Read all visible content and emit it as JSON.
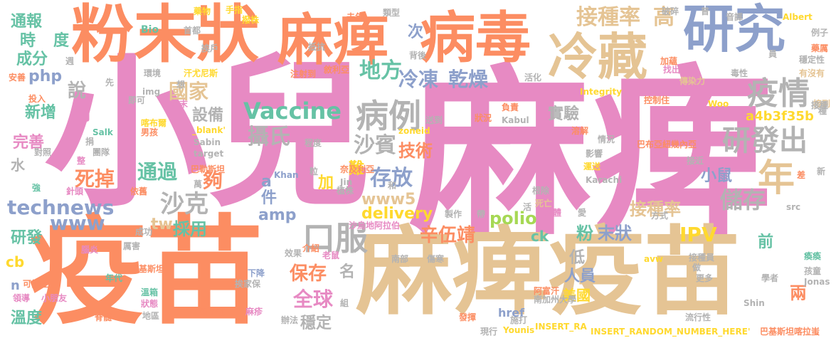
{
  "palette": {
    "pink": "#e78ac3",
    "orange": "#fc8d62",
    "tan": "#e5c494",
    "blue": "#8da0cb",
    "green": "#66c2a5",
    "lime": "#a6d854",
    "yellow": "#ffd92f",
    "gray": "#b3b3b3"
  },
  "words": [
    {
      "id": "xiaoer",
      "text": "小兒",
      "color": "pink"
    },
    {
      "id": "mabi-main",
      "text": "麻痺",
      "color": "pink"
    },
    {
      "id": "yimiao-1",
      "text": "疫苗",
      "color": "orange"
    },
    {
      "id": "mabi-yimiao",
      "text": "麻痺疫苗",
      "color": "tan"
    },
    {
      "id": "fenmozhuang",
      "text": "粉末狀",
      "color": "orange"
    },
    {
      "id": "mabi-2",
      "text": "麻痺",
      "color": "orange"
    },
    {
      "id": "bingdu",
      "text": "病毒",
      "color": "orange"
    },
    {
      "id": "yanjiu",
      "text": "研究",
      "color": "blue"
    },
    {
      "id": "lengcang",
      "text": "冷藏",
      "color": "tan"
    },
    {
      "id": "jiezhonglv",
      "text": "接種率",
      "color": "tan"
    },
    {
      "id": "gao",
      "text": "高",
      "color": "tan"
    },
    {
      "id": "yiqing",
      "text": "疫情",
      "color": "gray"
    },
    {
      "id": "yanfachu",
      "text": "研發出",
      "color": "gray"
    },
    {
      "id": "nian",
      "text": "年",
      "color": "tan"
    },
    {
      "id": "bingli",
      "text": "病例",
      "color": "gray"
    },
    {
      "id": "vaccine",
      "text": "Vaccine",
      "color": "green"
    },
    {
      "id": "difang",
      "text": "地方",
      "color": "green"
    },
    {
      "id": "lengdong",
      "text": "冷凍",
      "color": "blue"
    },
    {
      "id": "ganzao",
      "text": "乾燥",
      "color": "blue"
    },
    {
      "id": "guojia",
      "text": "國家",
      "color": "tan"
    },
    {
      "id": "shebei",
      "text": "設備",
      "color": "gray"
    },
    {
      "id": "shiyan",
      "text": "實驗",
      "color": "gray"
    },
    {
      "id": "shebin",
      "text": "沙賓",
      "color": "gray"
    },
    {
      "id": "jishu",
      "text": "技術",
      "color": "orange"
    },
    {
      "id": "koufu",
      "text": "口服",
      "color": "gray"
    },
    {
      "id": "shesi",
      "text": "攝氏",
      "color": "gray"
    },
    {
      "id": "cunfang",
      "text": "存放",
      "color": "blue"
    },
    {
      "id": "shake",
      "text": "沙克",
      "color": "gray"
    },
    {
      "id": "gou",
      "text": "夠",
      "color": "orange"
    },
    {
      "id": "tongguo",
      "text": "通過",
      "color": "green"
    },
    {
      "id": "cainyong",
      "text": "採用",
      "color": "green"
    },
    {
      "id": "technews",
      "text": "technews",
      "color": "blue"
    },
    {
      "id": "siqu",
      "text": "死掉",
      "color": "orange"
    },
    {
      "id": "wanshan",
      "text": "完善",
      "color": "pink"
    },
    {
      "id": "xinzeng",
      "text": "新增",
      "color": "green"
    },
    {
      "id": "yue",
      "text": "月",
      "color": "pink"
    },
    {
      "id": "shuo",
      "text": "說",
      "color": "gray"
    },
    {
      "id": "php",
      "text": "php",
      "color": "blue"
    },
    {
      "id": "shi",
      "text": "時",
      "color": "green"
    },
    {
      "id": "du",
      "text": "度",
      "color": "green"
    },
    {
      "id": "chengfen",
      "text": "成分",
      "color": "green"
    },
    {
      "id": "tongbao",
      "text": "通報",
      "color": "green"
    },
    {
      "id": "ci",
      "text": "次",
      "color": "blue"
    },
    {
      "id": "delivery",
      "text": "delivery",
      "color": "yellow"
    },
    {
      "id": "www5",
      "text": "www5",
      "color": "tan"
    },
    {
      "id": "polio",
      "text": "polio",
      "color": "lime"
    },
    {
      "id": "amp",
      "text": "amp",
      "color": "blue"
    },
    {
      "id": "a4b3",
      "text": "a4b3f35b",
      "color": "yellow"
    },
    {
      "id": "ipv",
      "text": "IPV",
      "color": "yellow"
    },
    {
      "id": "chucun",
      "text": "儲存",
      "color": "gray"
    },
    {
      "id": "xiaoshu",
      "text": "小鼠",
      "color": "blue"
    },
    {
      "id": "jiezhonglv-2",
      "text": "接種率",
      "color": "tan"
    },
    {
      "id": "xinwujing",
      "text": "辛伍靖",
      "color": "orange"
    },
    {
      "id": "fen",
      "text": "粉",
      "color": "green"
    },
    {
      "id": "mozhuang",
      "text": "末狀",
      "color": "blue"
    },
    {
      "id": "baocun",
      "text": "保存",
      "color": "orange"
    },
    {
      "id": "quanqiu",
      "text": "全球",
      "color": "pink"
    },
    {
      "id": "renyuan",
      "text": "人員",
      "color": "blue"
    },
    {
      "id": "meiguo",
      "text": "美國",
      "color": "yellow"
    },
    {
      "id": "wending",
      "text": "穩定",
      "color": "gray"
    },
    {
      "id": "wendu",
      "text": "溫度",
      "color": "green"
    },
    {
      "id": "yanfa",
      "text": "研發",
      "color": "green"
    },
    {
      "id": "www",
      "text": "www",
      "color": "blue"
    },
    {
      "id": "tw",
      "text": "tw",
      "color": "tan"
    },
    {
      "id": "qian",
      "text": "前",
      "color": "green"
    },
    {
      "id": "liang",
      "text": "兩",
      "color": "orange"
    },
    {
      "id": "ming",
      "text": "名",
      "color": "gray"
    },
    {
      "id": "di",
      "text": "低",
      "color": "gray"
    },
    {
      "id": "nan",
      "text": "難",
      "color": "yellow"
    },
    {
      "id": "jia",
      "text": "加",
      "color": "yellow"
    },
    {
      "id": "a",
      "text": "a",
      "color": "blue"
    },
    {
      "id": "jian",
      "text": "件",
      "color": "blue"
    },
    {
      "id": "shui",
      "text": "水",
      "color": "gray"
    },
    {
      "id": "cb",
      "text": "cb",
      "color": "yellow"
    },
    {
      "id": "n",
      "text": "n",
      "color": "blue"
    },
    {
      "id": "ck",
      "text": "ck",
      "color": "green"
    },
    {
      "id": "bio",
      "text": "Bio",
      "color": "green"
    },
    {
      "id": "shoudu",
      "text": "首都",
      "color": "gray"
    },
    {
      "id": "yaowu",
      "text": "藥物",
      "color": "yellow"
    },
    {
      "id": "shouzhi",
      "text": "手指",
      "color": "yellow"
    },
    {
      "id": "bozhu",
      "text": "撥株",
      "color": "yellow"
    },
    {
      "id": "qunian",
      "text": "去年",
      "color": "orange"
    },
    {
      "id": "leixing",
      "text": "類型",
      "color": "gray"
    },
    {
      "id": "pocui",
      "text": "破碎",
      "color": "gray"
    },
    {
      "id": "pu",
      "text": "普",
      "color": "gray"
    },
    {
      "id": "yinyi",
      "text": "音譯",
      "color": "gray"
    },
    {
      "id": "albert",
      "text": "Albert",
      "color": "yellow"
    },
    {
      "id": "lizi",
      "text": "例子",
      "color": "gray"
    },
    {
      "id": "yaoli",
      "text": "藥厲",
      "color": "orange"
    },
    {
      "id": "wendingxing",
      "text": "穩定性",
      "color": "gray"
    },
    {
      "id": "youmeiyou",
      "text": "有沒有",
      "color": "tan"
    },
    {
      "id": "jiedao",
      "text": "接到",
      "color": "tan"
    },
    {
      "id": "dikang",
      "text": "抵抗",
      "color": "gray"
    },
    {
      "id": "beihou",
      "text": "背後",
      "color": "gray"
    },
    {
      "id": "xulia",
      "text": "敘利亞",
      "color": "orange"
    },
    {
      "id": "zhushedao",
      "text": "注射到",
      "color": "orange"
    },
    {
      "id": "huohua",
      "text": "活化",
      "color": "gray"
    },
    {
      "id": "jiawen",
      "text": "加蘊",
      "color": "orange"
    },
    {
      "id": "zhaochu",
      "text": "找出",
      "color": "pink"
    },
    {
      "id": "chuanranli",
      "text": "傳染力",
      "color": "tan"
    },
    {
      "id": "duxing",
      "text": "毒性",
      "color": "gray"
    },
    {
      "id": "huanjing",
      "text": "環境",
      "color": "gray"
    },
    {
      "id": "hanfuni",
      "text": "汗尤尼斯",
      "color": "yellow"
    },
    {
      "id": "integrity",
      "text": "Integrity",
      "color": "yellow"
    },
    {
      "id": "kongzhi",
      "text": "控制住",
      "color": "orange"
    },
    {
      "id": "woo",
      "text": "Woo",
      "color": "yellow"
    },
    {
      "id": "jieji",
      "text": "接種",
      "color": "gray"
    },
    {
      "id": "img",
      "text": "img",
      "color": "gray"
    },
    {
      "id": "fuze",
      "text": "負責",
      "color": "orange"
    },
    {
      "id": "kabul",
      "text": "Kabul",
      "color": "gray"
    },
    {
      "id": "rongjie",
      "text": "溶解",
      "color": "orange"
    },
    {
      "id": "qingkuang",
      "text": "情況",
      "color": "gray"
    },
    {
      "id": "songdao",
      "text": "送到",
      "color": "gray"
    },
    {
      "id": "zhuangkuang",
      "text": "狀況",
      "color": "orange"
    },
    {
      "id": "zoneid",
      "text": "zoneid",
      "color": "yellow"
    },
    {
      "id": "bajisitan-nei",
      "text": "巴布亞紐幾內亞",
      "color": "orange"
    },
    {
      "id": "kabubu",
      "text": "喀布爾",
      "color": "yellow"
    },
    {
      "id": "nanhai",
      "text": "男孩",
      "color": "orange"
    },
    {
      "id": "salk",
      "text": "Salk",
      "color": "green"
    },
    {
      "id": "blank",
      "text": "_blank'",
      "color": "yellow"
    },
    {
      "id": "sabin",
      "text": "Sabin",
      "color": "gray"
    },
    {
      "id": "target",
      "text": "target",
      "color": "gray"
    },
    {
      "id": "chengdu",
      "text": "程度",
      "color": "gray"
    },
    {
      "id": "yingxiang",
      "text": "影響",
      "color": "gray"
    },
    {
      "id": "yunda",
      "text": "運送",
      "color": "yellow"
    },
    {
      "id": "jiejin",
      "text": "接近",
      "color": "gray"
    },
    {
      "id": "karachi",
      "text": "Karachi",
      "color": "gray"
    },
    {
      "id": "bajisitan",
      "text": "巴勒斯坦",
      "color": "orange"
    },
    {
      "id": "khan",
      "text": "Khan",
      "color": "blue"
    },
    {
      "id": "jin",
      "text": "Jin",
      "color": "gray"
    },
    {
      "id": "nailiya",
      "text": "奈及利亞",
      "color": "orange"
    },
    {
      "id": "genchu",
      "text": "根除",
      "color": "gray"
    },
    {
      "id": "zhizao",
      "text": "製作",
      "color": "gray"
    },
    {
      "id": "siwang",
      "text": "死亡",
      "color": "tan"
    },
    {
      "id": "renti",
      "text": "人體",
      "color": "pink"
    },
    {
      "id": "shadi",
      "text": "沙烏地阿拉伯",
      "color": "pink"
    },
    {
      "id": "src",
      "text": "src",
      "color": "gray"
    },
    {
      "id": "fangshi",
      "text": "方式",
      "color": "gray"
    },
    {
      "id": "aaw",
      "text": "avw",
      "color": "yellow"
    },
    {
      "id": "nanbu",
      "text": "南部",
      "color": "gray"
    },
    {
      "id": "shanghan",
      "text": "傷寒",
      "color": "gray"
    },
    {
      "id": "afuhan",
      "text": "阿富汗",
      "color": "orange"
    },
    {
      "id": "nanjiazhou",
      "text": "南加州大學",
      "color": "gray"
    },
    {
      "id": "jiezhongyuan",
      "text": "接種員",
      "color": "gray"
    },
    {
      "id": "huzheng",
      "text": "瘓瘓",
      "color": "green"
    },
    {
      "id": "haitong",
      "text": "孩童",
      "color": "gray"
    },
    {
      "id": "jonas",
      "text": "Jonas",
      "color": "gray"
    },
    {
      "id": "xuezhe",
      "text": "學者",
      "color": "gray"
    },
    {
      "id": "shin",
      "text": "Shin",
      "color": "gray"
    },
    {
      "id": "gengduo",
      "text": "更多",
      "color": "gray"
    },
    {
      "id": "liuxingxing",
      "text": "流行性",
      "color": "gray"
    },
    {
      "id": "fanying",
      "text": "發揮",
      "color": "orange"
    },
    {
      "id": "shida",
      "text": "施打",
      "color": "gray"
    },
    {
      "id": "href",
      "text": "href",
      "color": "blue"
    },
    {
      "id": "younis",
      "text": "Younis",
      "color": "yellow"
    },
    {
      "id": "insert-ra",
      "text": "INSERT_RA",
      "color": "yellow"
    },
    {
      "id": "insert-full",
      "text": "INSERT_RANDOM_NUMBER_HERE'",
      "color": "yellow"
    },
    {
      "id": "bajisitan-ka",
      "text": "巴基斯坦喀拉蚩",
      "color": "orange"
    },
    {
      "id": "xianxing",
      "text": "現行",
      "color": "gray"
    },
    {
      "id": "xiaoguo",
      "text": "效果",
      "color": "gray"
    },
    {
      "id": "jieshao",
      "text": "介紹",
      "color": "orange"
    },
    {
      "id": "laoshu",
      "text": "老鼠",
      "color": "pink"
    },
    {
      "id": "xiajiang",
      "text": "下降",
      "color": "blue"
    },
    {
      "id": "aijiabao",
      "text": "挨家保",
      "color": "gray"
    },
    {
      "id": "zu",
      "text": "組",
      "color": "gray"
    },
    {
      "id": "mazhen",
      "text": "麻疹",
      "color": "pink"
    },
    {
      "id": "renbuzhu",
      "text": "忍不住",
      "color": "orange"
    },
    {
      "id": "banfa",
      "text": "辦法",
      "color": "gray"
    },
    {
      "id": "diqu",
      "text": "地區",
      "color": "gray"
    },
    {
      "id": "jisui",
      "text": "脊髓",
      "color": "orange"
    },
    {
      "id": "zhuangtai",
      "text": "狀態",
      "color": "pink"
    },
    {
      "id": "wenxiang",
      "text": "溫箱",
      "color": "green"
    },
    {
      "id": "xiaopengyou",
      "text": "小朋友",
      "color": "pink"
    },
    {
      "id": "niandai",
      "text": "年代",
      "color": "green"
    },
    {
      "id": "kenengxing",
      "text": "可能性",
      "color": "orange"
    },
    {
      "id": "lingdao",
      "text": "領導",
      "color": "pink"
    },
    {
      "id": "bajisitan-2",
      "text": "巴基斯坦",
      "color": "orange"
    },
    {
      "id": "shuyan",
      "text": "腦炎",
      "color": "pink"
    },
    {
      "id": "lihai",
      "text": "厲害",
      "color": "gray"
    },
    {
      "id": "chenggong",
      "text": "成功",
      "color": "gray"
    },
    {
      "id": "yijiu",
      "text": "依舊",
      "color": "orange"
    },
    {
      "id": "zhentou",
      "text": "針頭",
      "color": "pink"
    },
    {
      "id": "qiang",
      "text": "強",
      "color": "green"
    },
    {
      "id": "tuanti",
      "text": "團隊",
      "color": "gray"
    },
    {
      "id": "duizhao",
      "text": "對照",
      "color": "gray"
    },
    {
      "id": "zheng",
      "text": "整",
      "color": "pink"
    },
    {
      "id": "juan",
      "text": "捐",
      "color": "gray"
    },
    {
      "id": "jike",
      "text": "即可",
      "color": "gray"
    },
    {
      "id": "xiang",
      "text": "想",
      "color": "gray"
    },
    {
      "id": "fenmo",
      "text": "粉末",
      "color": "pink"
    },
    {
      "id": "xian",
      "text": "先",
      "color": "gray"
    },
    {
      "id": "touru",
      "text": "投入",
      "color": "orange"
    },
    {
      "id": "anshan",
      "text": "安善",
      "color": "orange"
    },
    {
      "id": "zhou",
      "text": "週",
      "color": "gray"
    },
    {
      "id": "aimen",
      "text": "挨戶",
      "color": "gray"
    },
    {
      "id": "wan",
      "text": "萬",
      "color": "gray"
    },
    {
      "id": "xin",
      "text": "新",
      "color": "gray"
    },
    {
      "id": "cha",
      "text": "差",
      "color": "orange"
    },
    {
      "id": "li",
      "text": "粒",
      "color": "gray"
    },
    {
      "id": "zhizhi",
      "text": "植株",
      "color": "gray"
    },
    {
      "id": "hehuo",
      "text": "和",
      "color": "gray"
    },
    {
      "id": "yuan",
      "text": "員",
      "color": "gray"
    },
    {
      "id": "ke",
      "text": "活",
      "color": "gray"
    },
    {
      "id": "dai",
      "text": "帶",
      "color": "gray"
    },
    {
      "id": "ai",
      "text": "愛",
      "color": "gray"
    },
    {
      "id": "zuo",
      "text": "做",
      "color": "gray"
    },
    {
      "id": "zhong",
      "text": "種",
      "color": "gray"
    }
  ]
}
